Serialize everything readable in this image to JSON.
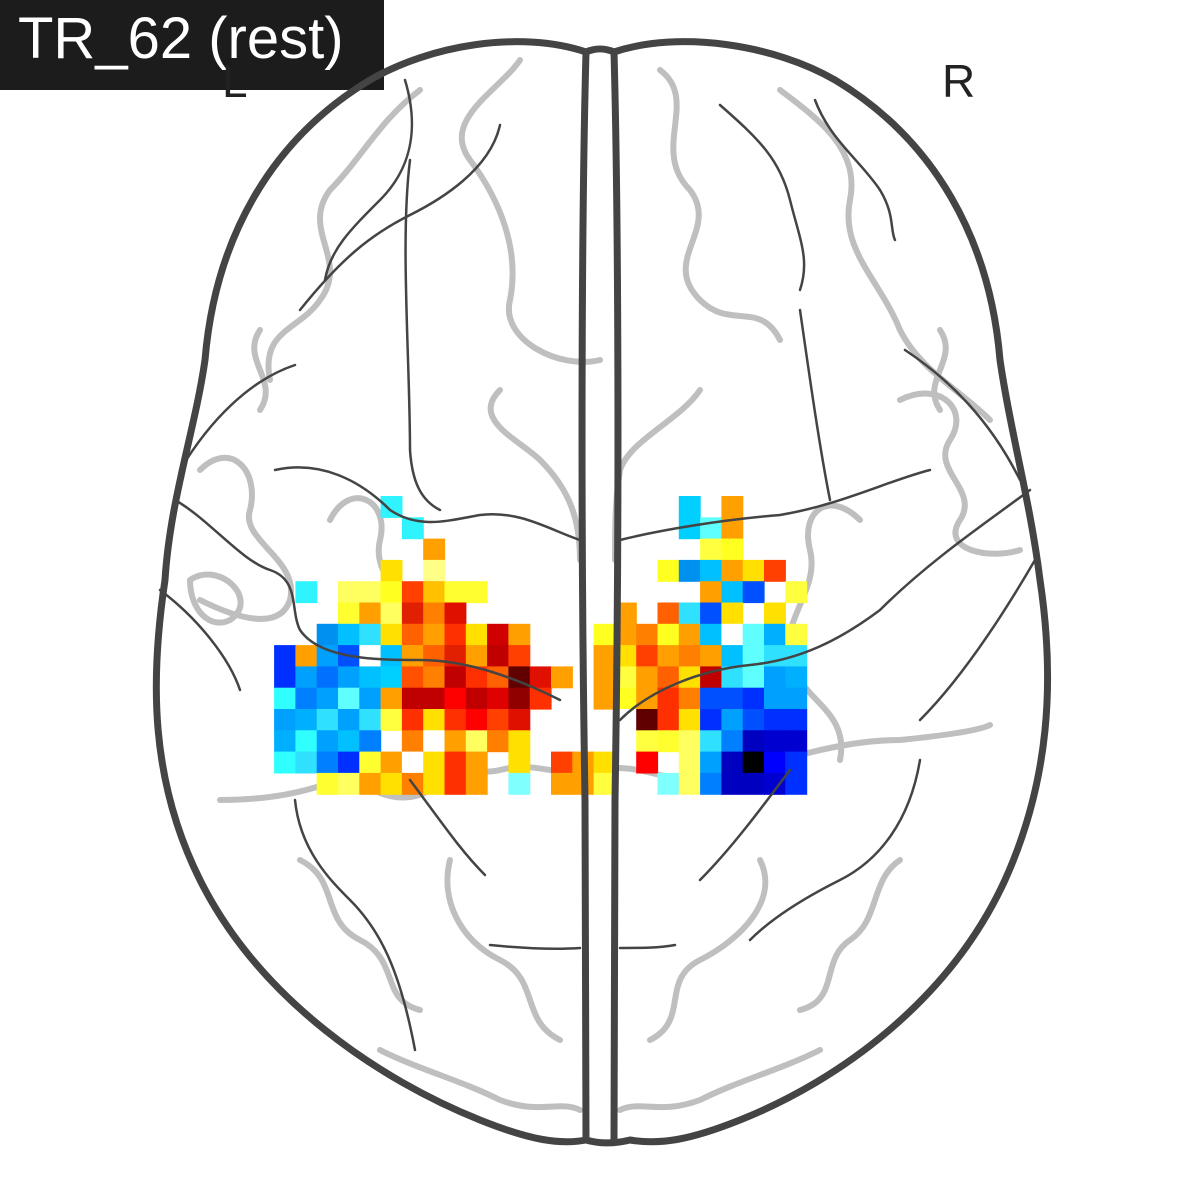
{
  "title": "TR_62 (rest)",
  "orientation": {
    "left": "L",
    "right": "R"
  },
  "colors": {
    "outline": "#444444",
    "sulci": "#bfbfbf",
    "title_bg": "#1c1c1c",
    "title_fg": "#ffffff"
  },
  "activation": {
    "colormap": "cold_hot",
    "grid_origin_row_col": [
      0,
      0
    ],
    "cells": [
      [
        0,
        2,
        "#2ff3ff"
      ],
      [
        1,
        3,
        "#2ff3ff"
      ],
      [
        2,
        4,
        "#ffa000"
      ],
      [
        3,
        2,
        "#ffe000"
      ],
      [
        3,
        4,
        "#ffff88"
      ],
      [
        4,
        -2,
        "#2ff3ff"
      ],
      [
        4,
        0,
        "#ffff60"
      ],
      [
        4,
        1,
        "#ffff60"
      ],
      [
        4,
        2,
        "#ffff20"
      ],
      [
        4,
        3,
        "#ff4000"
      ],
      [
        4,
        4,
        "#ffc000"
      ],
      [
        4,
        5,
        "#ffff30"
      ],
      [
        4,
        6,
        "#ffff30"
      ],
      [
        5,
        0,
        "#ffff30"
      ],
      [
        5,
        1,
        "#ffa000"
      ],
      [
        5,
        2,
        "#ffff60"
      ],
      [
        5,
        3,
        "#e02000"
      ],
      [
        5,
        4,
        "#ff8000"
      ],
      [
        5,
        5,
        "#e01000"
      ],
      [
        6,
        -1,
        "#0090f0"
      ],
      [
        6,
        0,
        "#00c0ff"
      ],
      [
        6,
        1,
        "#30e0ff"
      ],
      [
        6,
        2,
        "#ffe000"
      ],
      [
        6,
        3,
        "#ff6000"
      ],
      [
        6,
        4,
        "#ffa000"
      ],
      [
        6,
        5,
        "#ff3000"
      ],
      [
        6,
        6,
        "#ffe000"
      ],
      [
        6,
        7,
        "#d00000"
      ],
      [
        6,
        8,
        "#ffa000"
      ],
      [
        7,
        -3,
        "#0030ff"
      ],
      [
        7,
        -2,
        "#ffa000"
      ],
      [
        7,
        -1,
        "#00a0ff"
      ],
      [
        7,
        0,
        "#0050ff"
      ],
      [
        7,
        1,
        "#ffffff"
      ],
      [
        7,
        2,
        "#00c0ff"
      ],
      [
        7,
        3,
        "#ffa000"
      ],
      [
        7,
        4,
        "#ff6000"
      ],
      [
        7,
        5,
        "#e02000"
      ],
      [
        7,
        6,
        "#ffa000"
      ],
      [
        7,
        7,
        "#c00000"
      ],
      [
        7,
        8,
        "#ff4000"
      ],
      [
        8,
        -3,
        "#0030ff"
      ],
      [
        8,
        -2,
        "#00a0ff"
      ],
      [
        8,
        -1,
        "#0070ff"
      ],
      [
        8,
        0,
        "#00a0ff"
      ],
      [
        8,
        1,
        "#00c0ff"
      ],
      [
        8,
        2,
        "#00d0ff"
      ],
      [
        8,
        3,
        "#ff5000"
      ],
      [
        8,
        4,
        "#ff8000"
      ],
      [
        8,
        5,
        "#c00000"
      ],
      [
        8,
        6,
        "#ff3000"
      ],
      [
        8,
        7,
        "#ff6000"
      ],
      [
        8,
        8,
        "#600000"
      ],
      [
        8,
        9,
        "#e01000"
      ],
      [
        8,
        10,
        "#ffa000"
      ],
      [
        9,
        -3,
        "#30ffff"
      ],
      [
        9,
        -2,
        "#0080ff"
      ],
      [
        9,
        -1,
        "#00a0ff"
      ],
      [
        9,
        0,
        "#60ffff"
      ],
      [
        9,
        1,
        "#00a0ff"
      ],
      [
        9,
        2,
        "#ffa000"
      ],
      [
        9,
        3,
        "#c00000"
      ],
      [
        9,
        4,
        "#c00000"
      ],
      [
        9,
        5,
        "#ff0000"
      ],
      [
        9,
        6,
        "#c00000"
      ],
      [
        9,
        7,
        "#e00000"
      ],
      [
        9,
        8,
        "#900000"
      ],
      [
        9,
        9,
        "#ff3000"
      ],
      [
        10,
        -3,
        "#00a0ff"
      ],
      [
        10,
        -2,
        "#00b0ff"
      ],
      [
        10,
        -1,
        "#30e0ff"
      ],
      [
        10,
        0,
        "#00a0ff"
      ],
      [
        10,
        1,
        "#30e0ff"
      ],
      [
        10,
        2,
        "#ffff40"
      ],
      [
        10,
        3,
        "#ff3000"
      ],
      [
        10,
        4,
        "#ffe000"
      ],
      [
        10,
        5,
        "#ff3000"
      ],
      [
        10,
        6,
        "#ff0000"
      ],
      [
        10,
        7,
        "#ff4000"
      ],
      [
        10,
        8,
        "#e01000"
      ],
      [
        11,
        -3,
        "#00b0ff"
      ],
      [
        11,
        -2,
        "#30ffff"
      ],
      [
        11,
        -1,
        "#00a0ff"
      ],
      [
        11,
        0,
        "#00c0ff"
      ],
      [
        11,
        1,
        "#0080ff"
      ],
      [
        11,
        3,
        "#ff8000"
      ],
      [
        11,
        4,
        "#ffffff"
      ],
      [
        11,
        5,
        "#ffa000"
      ],
      [
        11,
        6,
        "#ffff60"
      ],
      [
        11,
        7,
        "#ff8000"
      ],
      [
        11,
        8,
        "#ffe000"
      ],
      [
        12,
        -3,
        "#30ffff"
      ],
      [
        12,
        -2,
        "#30e0ff"
      ],
      [
        12,
        -1,
        "#0080ff"
      ],
      [
        12,
        0,
        "#0030ff"
      ],
      [
        12,
        1,
        "#ffff30"
      ],
      [
        12,
        2,
        "#ffa000"
      ],
      [
        12,
        3,
        "#ffffff"
      ],
      [
        12,
        4,
        "#ffe000"
      ],
      [
        12,
        5,
        "#ff3000"
      ],
      [
        12,
        6,
        "#ffa000"
      ],
      [
        12,
        8,
        "#ffe000"
      ],
      [
        13,
        -1,
        "#ffff30"
      ],
      [
        13,
        0,
        "#ffff60"
      ],
      [
        13,
        1,
        "#ffa000"
      ],
      [
        13,
        2,
        "#ffe000"
      ],
      [
        13,
        3,
        "#ff8000"
      ],
      [
        13,
        4,
        "#ffe000"
      ],
      [
        13,
        5,
        "#ff3000"
      ],
      [
        13,
        6,
        "#ffa000"
      ],
      [
        13,
        8,
        "#80ffff"
      ],
      [
        0,
        16,
        "#00d0ff"
      ],
      [
        0,
        18,
        "#ffa000"
      ],
      [
        1,
        16,
        "#00d0ff"
      ],
      [
        1,
        17,
        "#60ffff"
      ],
      [
        1,
        18,
        "#ffa000"
      ],
      [
        2,
        17,
        "#ffff40"
      ],
      [
        2,
        18,
        "#ffff20"
      ],
      [
        3,
        15,
        "#ffff20"
      ],
      [
        3,
        16,
        "#0090f0"
      ],
      [
        3,
        17,
        "#00c0ff"
      ],
      [
        3,
        18,
        "#ffa000"
      ],
      [
        3,
        19,
        "#ffe000"
      ],
      [
        3,
        20,
        "#ff4000"
      ],
      [
        4,
        17,
        "#ffa000"
      ],
      [
        4,
        18,
        "#00c0ff"
      ],
      [
        4,
        19,
        "#0050ff"
      ],
      [
        4,
        21,
        "#ffff40"
      ],
      [
        5,
        13,
        "#ffa000"
      ],
      [
        5,
        15,
        "#ff6000"
      ],
      [
        5,
        16,
        "#30e0ff"
      ],
      [
        5,
        17,
        "#0050ff"
      ],
      [
        5,
        18,
        "#ffe000"
      ],
      [
        5,
        20,
        "#ffe000"
      ],
      [
        6,
        12,
        "#ffff20"
      ],
      [
        6,
        13,
        "#ffa000"
      ],
      [
        6,
        14,
        "#ff8000"
      ],
      [
        6,
        15,
        "#ffff20"
      ],
      [
        6,
        16,
        "#ffa000"
      ],
      [
        6,
        17,
        "#00c0ff"
      ],
      [
        6,
        18,
        "#ffffff"
      ],
      [
        6,
        19,
        "#60ffff"
      ],
      [
        6,
        20,
        "#00b0ff"
      ],
      [
        6,
        21,
        "#ffff40"
      ],
      [
        7,
        12,
        "#ffa000"
      ],
      [
        7,
        13,
        "#ffe000"
      ],
      [
        7,
        14,
        "#ff4000"
      ],
      [
        7,
        15,
        "#ffa000"
      ],
      [
        7,
        16,
        "#ff8000"
      ],
      [
        7,
        17,
        "#ffa000"
      ],
      [
        7,
        18,
        "#00c0ff"
      ],
      [
        7,
        19,
        "#60ffff"
      ],
      [
        7,
        20,
        "#30e0ff"
      ],
      [
        7,
        21,
        "#30e0ff"
      ],
      [
        8,
        12,
        "#ffa000"
      ],
      [
        8,
        13,
        "#ffff40"
      ],
      [
        8,
        14,
        "#ffa000"
      ],
      [
        8,
        15,
        "#ff6000"
      ],
      [
        8,
        16,
        "#ffe000"
      ],
      [
        8,
        17,
        "#c00000"
      ],
      [
        8,
        18,
        "#30e0ff"
      ],
      [
        8,
        19,
        "#60ffff"
      ],
      [
        8,
        20,
        "#00a0ff"
      ],
      [
        8,
        21,
        "#00b0ff"
      ],
      [
        9,
        12,
        "#ffa000"
      ],
      [
        9,
        13,
        "#ffff20"
      ],
      [
        9,
        14,
        "#ffa000"
      ],
      [
        9,
        15,
        "#ff3000"
      ],
      [
        9,
        16,
        "#ff8000"
      ],
      [
        9,
        17,
        "#0050ff"
      ],
      [
        9,
        18,
        "#0050ff"
      ],
      [
        9,
        19,
        "#0030ff"
      ],
      [
        9,
        20,
        "#00a0ff"
      ],
      [
        9,
        21,
        "#00a0ff"
      ],
      [
        10,
        13,
        "#ffffff"
      ],
      [
        10,
        14,
        "#600000"
      ],
      [
        10,
        15,
        "#ff3000"
      ],
      [
        10,
        16,
        "#ffe000"
      ],
      [
        10,
        17,
        "#0030ff"
      ],
      [
        10,
        18,
        "#00a0ff"
      ],
      [
        10,
        19,
        "#0050ff"
      ],
      [
        10,
        20,
        "#0030ff"
      ],
      [
        10,
        21,
        "#0030ff"
      ],
      [
        11,
        14,
        "#ffff40"
      ],
      [
        11,
        15,
        "#ffff30"
      ],
      [
        11,
        16,
        "#ffff60"
      ],
      [
        11,
        17,
        "#30e0ff"
      ],
      [
        11,
        18,
        "#0080ff"
      ],
      [
        11,
        19,
        "#0000c0"
      ],
      [
        11,
        20,
        "#0000d0"
      ],
      [
        11,
        21,
        "#0000d0"
      ],
      [
        12,
        10,
        "#ff4000"
      ],
      [
        12,
        11,
        "#ffa000"
      ],
      [
        12,
        12,
        "#ffe000"
      ],
      [
        12,
        14,
        "#ff0000"
      ],
      [
        12,
        16,
        "#ffff60"
      ],
      [
        12,
        17,
        "#00a0ff"
      ],
      [
        12,
        18,
        "#0000c0"
      ],
      [
        12,
        19,
        "#000000"
      ],
      [
        12,
        20,
        "#0000ff"
      ],
      [
        12,
        21,
        "#0030ff"
      ],
      [
        13,
        10,
        "#ffa000"
      ],
      [
        13,
        11,
        "#ffa000"
      ],
      [
        13,
        12,
        "#ffff40"
      ],
      [
        13,
        15,
        "#80ffff"
      ],
      [
        13,
        16,
        "#ffff60"
      ],
      [
        13,
        17,
        "#0080ff"
      ],
      [
        13,
        18,
        "#0000c0"
      ],
      [
        13,
        19,
        "#0000c0"
      ],
      [
        13,
        20,
        "#0000d0"
      ],
      [
        13,
        21,
        "#0030ff"
      ]
    ]
  }
}
